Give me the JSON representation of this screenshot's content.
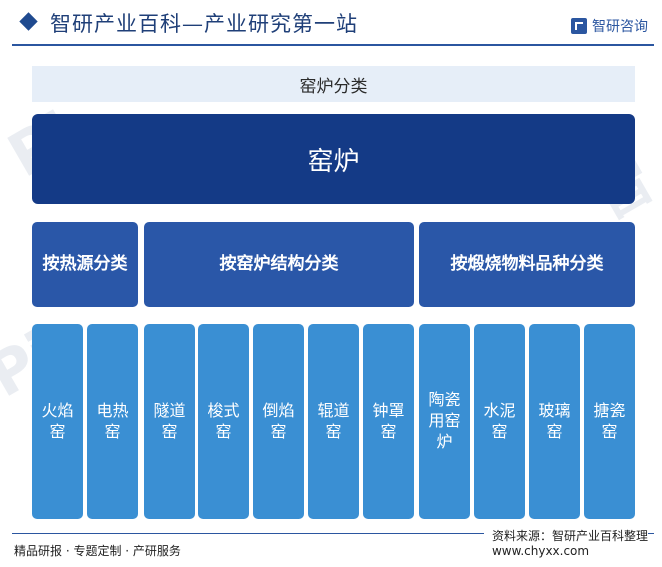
{
  "header": {
    "title": "智研产业百科—产业研究第一站",
    "brand": "智研咨询"
  },
  "diagram": {
    "title": "窑炉分类",
    "root": "窑炉",
    "categories": [
      {
        "label": "按热源分类",
        "items": [
          "火焰窑",
          "电热窑"
        ]
      },
      {
        "label": "按窑炉结构分类",
        "items": [
          "隧道窑",
          "梭式窑",
          "倒焰窑",
          "辊道窑",
          "钟罩窑"
        ]
      },
      {
        "label": "按煅烧物料品种分类",
        "items": [
          "陶瓷用窑炉",
          "水泥窑",
          "玻璃窑",
          "搪瓷窑"
        ]
      }
    ]
  },
  "footer": {
    "source": "资料来源：智研产业百科整理",
    "url": "www.chyxx.com",
    "tagline": "精品研报 · 专题定制 · 产研服务"
  },
  "colors": {
    "root": "#143a86",
    "category": "#2a57a8",
    "leaf": "#3a8fd3",
    "title_bg": "#e6eef8"
  }
}
